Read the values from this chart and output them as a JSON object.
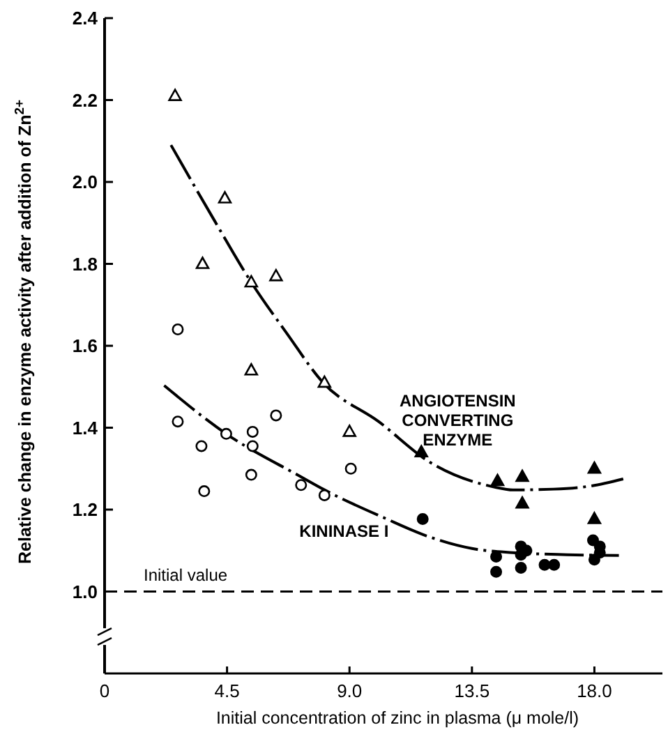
{
  "chart_data": {
    "type": "scatter",
    "xlabel": "Initial concentration of zinc in plasma (μ mole/l)",
    "ylabel": "Relative change in enzyme activity after addition of Zn$^{2+}$",
    "xlim": [
      0,
      20.5
    ],
    "xticks": [
      0,
      {
        "value": 4.5,
        "label": "4.5"
      },
      {
        "value": 9,
        "label": "9.0"
      },
      {
        "value": 13.5,
        "label": "13.5"
      },
      {
        "value": 18,
        "label": "18.0"
      }
    ],
    "ylim": [
      0.8,
      2.4
    ],
    "yticks": [
      {
        "value": 1,
        "label": "1.0"
      },
      {
        "value": 1.2,
        "label": "1.2"
      },
      {
        "value": 1.4,
        "label": "1.4"
      },
      {
        "value": 1.6,
        "label": "1.6"
      },
      {
        "value": 1.8,
        "label": "1.8"
      },
      {
        "value": 2,
        "label": "2.0"
      },
      {
        "value": 2.2,
        "label": "2.2"
      },
      {
        "value": 2.4,
        "label": "2.4"
      }
    ],
    "grid": false,
    "series": [
      {
        "marker": "triangle",
        "color": "#ffffff",
        "x": [
          2.59,
          4.42,
          3.6,
          5.39,
          6.3,
          5.39,
          8.08,
          9.0
        ],
        "values": [
          2.21,
          1.96,
          1.8,
          1.755,
          1.77,
          1.54,
          1.51,
          1.39
        ]
      },
      {
        "marker": "triangle",
        "color": "#000000",
        "x": [
          11.64,
          14.44,
          15.35,
          15.35,
          18.0,
          18.0
        ],
        "values": [
          1.34,
          1.27,
          1.28,
          1.215,
          1.3,
          1.177
        ]
      },
      {
        "marker": "circle",
        "color": "#ffffff",
        "x": [
          2.69,
          2.69,
          3.56,
          3.66,
          4.47,
          5.44,
          5.44,
          5.39,
          6.3,
          7.22,
          8.08,
          9.05
        ],
        "values": [
          1.64,
          1.415,
          1.355,
          1.245,
          1.385,
          1.39,
          1.355,
          1.285,
          1.43,
          1.26,
          1.235,
          1.3
        ]
      },
      {
        "marker": "circle",
        "color": "#000000",
        "x": [
          11.69,
          14.39,
          14.39,
          15.3,
          15.3,
          15.3,
          15.5,
          16.17,
          16.52,
          17.95,
          18.2,
          18.2,
          18.0
        ],
        "values": [
          1.177,
          1.085,
          1.048,
          1.11,
          1.09,
          1.058,
          1.1,
          1.065,
          1.065,
          1.125,
          1.11,
          1.095,
          1.078
        ]
      },
      {
        "type": "line",
        "name": "ANGIOTENSIN CONVERTING ENZYME",
        "color": "#000000",
        "line_style": "dashed",
        "marker": "none",
        "x": [
          2.44,
          4.0,
          5.39,
          6.7,
          8.03,
          10.07,
          11.95,
          14.34,
          15.0,
          16.5,
          17.9,
          19.06
        ],
        "values": [
          2.09,
          1.91,
          1.755,
          1.63,
          1.51,
          1.415,
          1.316,
          1.255,
          1.248,
          1.25,
          1.258,
          1.275
        ]
      },
      {
        "type": "line",
        "name": "KININASE I",
        "color": "#000000",
        "line_style": "dashed",
        "marker": "none",
        "x": [
          2.19,
          4.47,
          7.22,
          8.03,
          10.27,
          11.95,
          13.5,
          15.0,
          17.0,
          18.9
        ],
        "values": [
          1.503,
          1.385,
          1.28,
          1.25,
          1.18,
          1.133,
          1.105,
          1.095,
          1.09,
          1.088
        ]
      }
    ],
    "ref_lines": [
      {
        "axis": "y",
        "value": 1.0,
        "label": "Initial value",
        "line_style": "dashed",
        "color": "#000000"
      }
    ]
  }
}
